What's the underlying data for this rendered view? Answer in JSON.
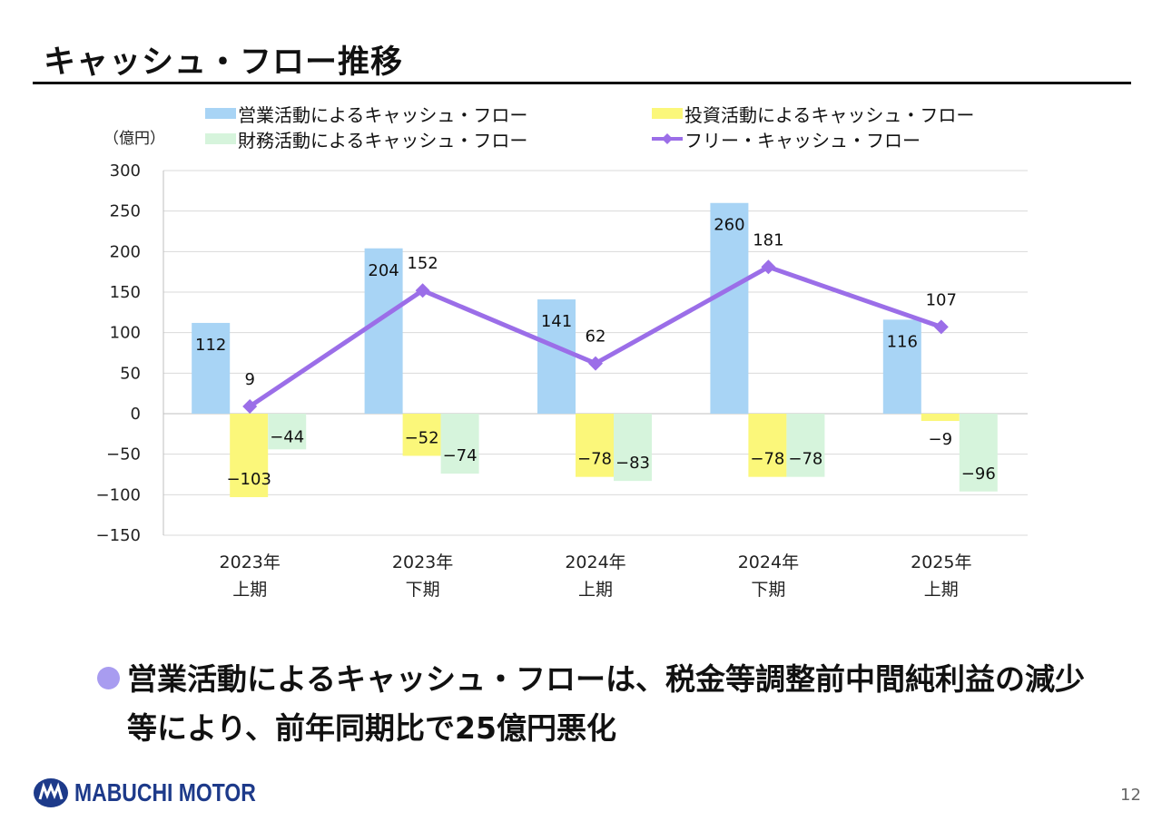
{
  "slide": {
    "title": "キャッシュ・フロー推移",
    "unit_label": "（億円）",
    "bullet_text": "営業活動によるキャッシュ・フローは、税金等調整前中間純利益の減少等により、前年同期比で25億円悪化",
    "logo_text": "MABUCHI MOTOR",
    "page_number": "12"
  },
  "colors": {
    "operating": "#a8d4f5",
    "investing": "#fbf77a",
    "financing": "#d6f4dc",
    "free_cf": "#9b6ee8",
    "bullet": "#a89cf0",
    "logo": "#1d3a8a"
  },
  "chart_data": {
    "type": "bar",
    "categories": [
      [
        "2023年",
        "上期"
      ],
      [
        "2023年",
        "下期"
      ],
      [
        "2024年",
        "上期"
      ],
      [
        "2024年",
        "下期"
      ],
      [
        "2025年",
        "上期"
      ]
    ],
    "series": [
      {
        "name": "営業活動によるキャッシュ・フロー",
        "type": "bar",
        "values": [
          112,
          204,
          141,
          260,
          116
        ]
      },
      {
        "name": "投資活動によるキャッシュ・フロー",
        "type": "bar",
        "values": [
          -103,
          -52,
          -78,
          -78,
          -9
        ]
      },
      {
        "name": "財務活動によるキャッシュ・フロー",
        "type": "bar",
        "values": [
          -44,
          -74,
          -83,
          -78,
          -96
        ]
      },
      {
        "name": "フリー・キャッシュ・フロー",
        "type": "line",
        "marker": "diamond",
        "values": [
          9,
          152,
          62,
          181,
          107
        ]
      }
    ],
    "ylim": [
      -150,
      300
    ],
    "yticks": [
      300,
      250,
      200,
      150,
      100,
      50,
      0,
      -50,
      -100,
      -150
    ],
    "ytick_labels": [
      "300",
      "250",
      "200",
      "150",
      "100",
      "50",
      "0",
      "−50",
      "−100",
      "−150"
    ],
    "data_labels": [
      [
        "112",
        "204",
        "141",
        "260",
        "116"
      ],
      [
        "−103",
        "−52",
        "−78",
        "−78",
        "−9"
      ],
      [
        "−44",
        "−74",
        "−83",
        "−78",
        "−96"
      ],
      [
        "9",
        "152",
        "62",
        "181",
        "107"
      ]
    ],
    "grid": true,
    "legend": "top"
  }
}
